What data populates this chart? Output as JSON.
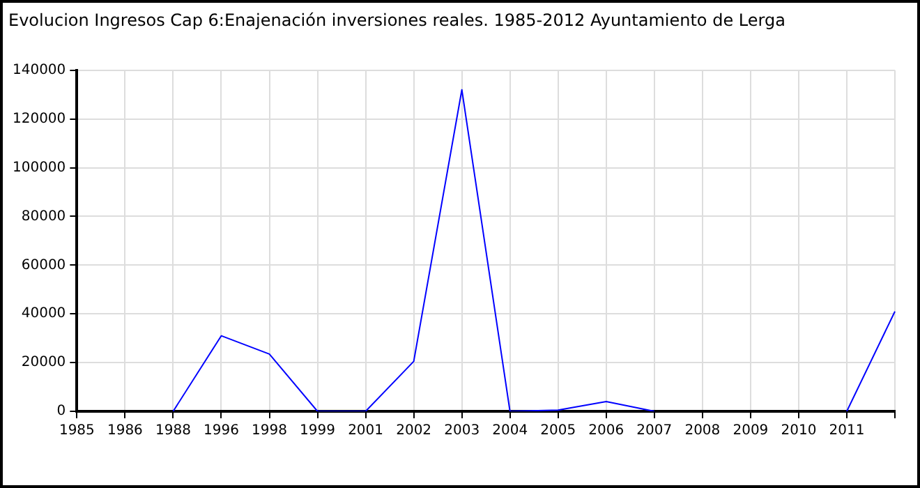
{
  "chart_data": {
    "type": "line",
    "title": "Evolucion Ingresos Cap 6:Enajenación inversiones reales. 1985-2012 Ayuntamiento de Lerga",
    "categories": [
      "1985",
      "1986",
      "1988",
      "1996",
      "1998",
      "1999",
      "2001",
      "2002",
      "2003",
      "2004",
      "2005",
      "2006",
      "2007",
      "2008",
      "2009",
      "2010",
      "2011",
      null
    ],
    "series": [
      {
        "color": "#0000ff",
        "values": [
          null,
          null,
          0,
          31000,
          23500,
          0,
          0,
          20500,
          132000,
          0,
          500,
          4000,
          0,
          null,
          null,
          null,
          0,
          41000
        ]
      }
    ],
    "ylim": [
      0,
      140000
    ],
    "yticks": [
      0,
      20000,
      40000,
      60000,
      80000,
      100000,
      120000,
      140000
    ],
    "grid": true,
    "legend": false,
    "marker": "none",
    "line_style": "solid"
  }
}
